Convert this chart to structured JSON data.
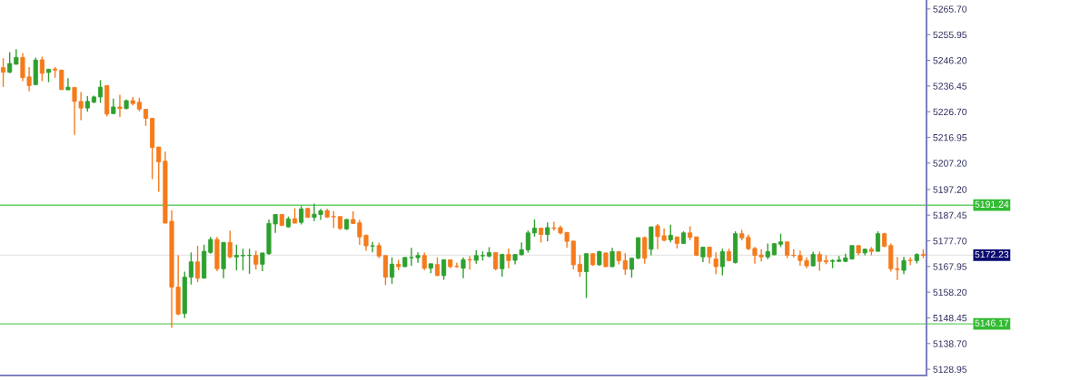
{
  "chart_data": {
    "type": "candlestick",
    "categories": [
      null,
      null,
      null,
      null,
      null,
      null,
      null,
      null,
      null,
      null,
      null,
      null,
      null,
      null,
      null,
      null,
      null,
      null,
      null,
      null,
      null,
      null,
      null,
      null,
      null,
      null,
      null,
      null,
      null,
      null,
      null,
      null,
      null,
      null,
      null,
      null,
      null,
      null,
      null,
      null,
      null,
      null,
      null,
      null,
      null,
      null,
      null,
      null,
      null,
      null,
      null,
      null,
      null,
      null,
      null,
      null,
      null,
      null,
      null,
      null,
      null,
      null,
      null,
      null,
      null,
      null,
      null,
      null,
      null,
      null,
      null,
      null,
      null,
      null,
      null,
      null,
      null,
      null,
      null,
      null,
      null,
      null,
      null,
      null,
      null,
      null,
      null,
      null,
      null,
      null,
      null,
      null,
      null,
      null,
      null,
      null,
      null,
      null,
      null,
      null,
      null,
      null,
      null,
      null,
      null,
      null,
      null,
      null,
      null,
      null,
      null,
      null,
      null,
      null,
      null,
      null,
      null,
      null,
      null,
      null,
      null,
      null,
      null,
      null,
      null,
      null,
      null,
      null,
      null,
      null,
      null,
      null,
      null,
      null,
      null,
      null,
      null,
      null,
      null,
      null,
      null,
      null,
      null
    ],
    "ohlc": [
      [
        5243.4,
        5247.0,
        5236.1,
        5241.7
      ],
      [
        5241.7,
        5249.3,
        5241.3,
        5245.0
      ],
      [
        5244.7,
        5250.4,
        5244.7,
        5247.3
      ],
      [
        5247.3,
        5249.0,
        5238.3,
        5239.6
      ],
      [
        5239.9,
        5243.6,
        5234.5,
        5236.6
      ],
      [
        5237.0,
        5247.2,
        5236.7,
        5246.3
      ],
      [
        5246.4,
        5247.6,
        5238.3,
        5241.3
      ],
      [
        5241.6,
        5243.0,
        5237.9,
        5242.8
      ],
      [
        5242.9,
        5243.7,
        5239.6,
        5242.5
      ],
      [
        5242.5,
        5242.5,
        5234.9,
        5235.1
      ],
      [
        5235.0,
        5239.4,
        5235.0,
        5236.0
      ],
      [
        5235.9,
        5235.9,
        5217.9,
        5230.6
      ],
      [
        5230.6,
        5234.2,
        5223.5,
        5228.1
      ],
      [
        5228.1,
        5232.6,
        5226.8,
        5230.6
      ],
      [
        5230.3,
        5232.8,
        5230.0,
        5232.3
      ],
      [
        5232.3,
        5238.7,
        5230.1,
        5236.0
      ],
      [
        5236.6,
        5236.8,
        5224.9,
        5225.8
      ],
      [
        5226.0,
        5231.7,
        5225.8,
        5228.5
      ],
      [
        5228.5,
        5233.1,
        5224.7,
        5227.9
      ],
      [
        5227.9,
        5231.3,
        5227.6,
        5230.9
      ],
      [
        5230.9,
        5232.3,
        5229.1,
        5229.8
      ],
      [
        5230.3,
        5232.0,
        5226.9,
        5227.7
      ],
      [
        5227.6,
        5227.6,
        5221.3,
        5224.2
      ],
      [
        5224.2,
        5224.2,
        5201.1,
        5213.1
      ],
      [
        5213.3,
        5213.3,
        5196.3,
        5207.7
      ],
      [
        5207.9,
        5211.5,
        5184.4,
        5184.4
      ],
      [
        5185.1,
        5189.2,
        5144.7,
        5160.1
      ],
      [
        5160.1,
        5172.2,
        5149.5,
        5149.9
      ],
      [
        5150.1,
        5166.0,
        5148.4,
        5163.9
      ],
      [
        5163.9,
        5173.3,
        5161.1,
        5169.7
      ],
      [
        5169.7,
        5175.8,
        5162.0,
        5163.5
      ],
      [
        5163.5,
        5176.2,
        5163.5,
        5173.7
      ],
      [
        5173.3,
        5179.2,
        5172.8,
        5178.2
      ],
      [
        5178.2,
        5179.2,
        5166.2,
        5167.1
      ],
      [
        5167.1,
        5177.1,
        5163.5,
        5177.1
      ],
      [
        5177.1,
        5181.6,
        5171.1,
        5171.6
      ],
      [
        5171.6,
        5176.2,
        5166.5,
        5172.2
      ],
      [
        5172.0,
        5174.7,
        5166.5,
        5172.2
      ],
      [
        5172.1,
        5174.7,
        5165.2,
        5172.2
      ],
      [
        5172.2,
        5173.9,
        5166.9,
        5168.8
      ],
      [
        5168.8,
        5173.1,
        5166.2,
        5173.1
      ],
      [
        5172.8,
        5185.8,
        5172.4,
        5184.3
      ],
      [
        5184.1,
        5187.7,
        5180.7,
        5187.7
      ],
      [
        5187.7,
        5187.7,
        5183.5,
        5183.5
      ],
      [
        5183.0,
        5186.9,
        5182.7,
        5186.0
      ],
      [
        5186.1,
        5190.1,
        5184.4,
        5184.4
      ],
      [
        5184.7,
        5190.9,
        5183.9,
        5189.8
      ],
      [
        5190.0,
        5190.3,
        5186.4,
        5186.6
      ],
      [
        5186.6,
        5191.8,
        5185.2,
        5187.8
      ],
      [
        5187.7,
        5189.8,
        5185.6,
        5189.1
      ],
      [
        5189.2,
        5189.8,
        5186.4,
        5186.7
      ],
      [
        5186.9,
        5189.0,
        5182.6,
        5186.8
      ],
      [
        5186.9,
        5186.9,
        5181.8,
        5182.4
      ],
      [
        5182.2,
        5186.0,
        5181.8,
        5185.8
      ],
      [
        5185.8,
        5188.9,
        5184.1,
        5184.3
      ],
      [
        5184.5,
        5185.7,
        5176.2,
        5179.2
      ],
      [
        5179.8,
        5180.1,
        5173.9,
        5175.8
      ],
      [
        5175.7,
        5177.3,
        5173.3,
        5175.8
      ],
      [
        5175.9,
        5177.0,
        5171.1,
        5171.9
      ],
      [
        5172.1,
        5172.1,
        5160.9,
        5163.9
      ],
      [
        5163.9,
        5171.4,
        5161.4,
        5168.8
      ],
      [
        5168.8,
        5170.5,
        5166.5,
        5167.9
      ],
      [
        5167.9,
        5171.4,
        5167.7,
        5171.4
      ],
      [
        5171.3,
        5175.0,
        5168.2,
        5171.4
      ],
      [
        5171.3,
        5173.3,
        5169.4,
        5172.1
      ],
      [
        5172.1,
        5173.2,
        5166.5,
        5167.3
      ],
      [
        5167.3,
        5169.0,
        5165.4,
        5169.0
      ],
      [
        5168.7,
        5171.4,
        5164.3,
        5164.5
      ],
      [
        5164.5,
        5170.7,
        5162.9,
        5170.5
      ],
      [
        5170.5,
        5170.5,
        5167.3,
        5167.9
      ],
      [
        5168.0,
        5169.4,
        5167.5,
        5167.9
      ],
      [
        5167.3,
        5171.4,
        5163.5,
        5170.5
      ],
      [
        5170.5,
        5171.9,
        5166.8,
        5170.4
      ],
      [
        5170.3,
        5174.1,
        5169.0,
        5172.1
      ],
      [
        5172.0,
        5173.7,
        5170.2,
        5172.1
      ],
      [
        5171.9,
        5175.3,
        5171.4,
        5173.2
      ],
      [
        5173.2,
        5173.2,
        5166.5,
        5167.1
      ],
      [
        5167.1,
        5172.8,
        5164.1,
        5172.5
      ],
      [
        5172.5,
        5174.8,
        5167.3,
        5170.2
      ],
      [
        5170.3,
        5172.5,
        5168.8,
        5172.5
      ],
      [
        5172.4,
        5177.1,
        5172.2,
        5174.3
      ],
      [
        5174.3,
        5181.6,
        5173.2,
        5180.7
      ],
      [
        5180.7,
        5185.8,
        5179.3,
        5182.5
      ],
      [
        5182.5,
        5182.5,
        5177.0,
        5180.1
      ],
      [
        5180.1,
        5184.7,
        5177.5,
        5182.7
      ],
      [
        5182.6,
        5184.9,
        5181.6,
        5182.4
      ],
      [
        5182.7,
        5183.5,
        5180.1,
        5180.7
      ],
      [
        5180.9,
        5180.9,
        5175.0,
        5177.5
      ],
      [
        5177.6,
        5177.6,
        5166.9,
        5168.6
      ],
      [
        5168.8,
        5172.2,
        5164.0,
        5166.0
      ],
      [
        5166.0,
        5173.0,
        5156.0,
        5172.8
      ],
      [
        5172.8,
        5173.0,
        5168.2,
        5168.6
      ],
      [
        5168.6,
        5173.9,
        5168.2,
        5173.6
      ],
      [
        5173.1,
        5173.1,
        5167.7,
        5167.9
      ],
      [
        5167.9,
        5175.0,
        5167.7,
        5173.6
      ],
      [
        5173.6,
        5173.6,
        5168.8,
        5170.2
      ],
      [
        5170.2,
        5173.0,
        5164.8,
        5166.9
      ],
      [
        5166.9,
        5171.1,
        5163.7,
        5171.1
      ],
      [
        5171.1,
        5178.9,
        5170.7,
        5178.9
      ],
      [
        5178.9,
        5179.3,
        5169.0,
        5171.1
      ],
      [
        5174.5,
        5183.0,
        5172.2,
        5183.0
      ],
      [
        5183.4,
        5184.1,
        5174.5,
        5179.3
      ],
      [
        5179.6,
        5182.4,
        5177.5,
        5177.9
      ],
      [
        5178.1,
        5183.8,
        5177.1,
        5179.8
      ],
      [
        5179.2,
        5179.2,
        5174.8,
        5176.7
      ],
      [
        5176.7,
        5181.3,
        5176.5,
        5180.7
      ],
      [
        5180.7,
        5183.2,
        5177.9,
        5179.0
      ],
      [
        5179.2,
        5179.2,
        5171.9,
        5172.2
      ],
      [
        5171.6,
        5175.3,
        5169.6,
        5175.3
      ],
      [
        5175.3,
        5175.3,
        5169.1,
        5171.6
      ],
      [
        5170.8,
        5173.3,
        5165.1,
        5167.9
      ],
      [
        5167.9,
        5174.7,
        5164.6,
        5173.6
      ],
      [
        5173.6,
        5174.7,
        5169.9,
        5170.2
      ],
      [
        5169.4,
        5181.3,
        5169.1,
        5180.4
      ],
      [
        5180.4,
        5181.8,
        5177.9,
        5178.8
      ],
      [
        5179.0,
        5180.1,
        5174.2,
        5174.7
      ],
      [
        5174.8,
        5175.4,
        5169.0,
        5172.2
      ],
      [
        5172.3,
        5174.5,
        5169.9,
        5171.6
      ],
      [
        5171.6,
        5176.7,
        5170.7,
        5173.6
      ],
      [
        5172.4,
        5176.9,
        5172.2,
        5176.6
      ],
      [
        5176.4,
        5180.4,
        5175.3,
        5177.3
      ],
      [
        5177.3,
        5177.3,
        5171.1,
        5172.2
      ],
      [
        5172.2,
        5174.5,
        5171.4,
        5172.1
      ],
      [
        5172.1,
        5173.9,
        5168.2,
        5170.2
      ],
      [
        5170.2,
        5171.4,
        5167.3,
        5168.2
      ],
      [
        5168.2,
        5173.6,
        5168.0,
        5172.5
      ],
      [
        5172.5,
        5173.6,
        5166.3,
        5169.9
      ],
      [
        5170.2,
        5172.2,
        5168.8,
        5169.7
      ],
      [
        5169.9,
        5170.7,
        5167.3,
        5170.2
      ],
      [
        5169.9,
        5171.9,
        5169.7,
        5170.4
      ],
      [
        5169.9,
        5172.8,
        5169.6,
        5171.2
      ],
      [
        5170.8,
        5175.9,
        5170.6,
        5175.9
      ],
      [
        5175.9,
        5175.9,
        5172.2,
        5173.1
      ],
      [
        5173.1,
        5174.8,
        5172.2,
        5174.5
      ],
      [
        5174.5,
        5175.3,
        5172.2,
        5173.7
      ],
      [
        5173.7,
        5181.3,
        5173.7,
        5180.4
      ],
      [
        5180.4,
        5180.7,
        5175.3,
        5175.6
      ],
      [
        5175.9,
        5176.7,
        5166.0,
        5167.1
      ],
      [
        5167.1,
        5171.6,
        5162.8,
        5166.8
      ],
      [
        5166.5,
        5171.6,
        5165.1,
        5170.2
      ],
      [
        5170.3,
        5171.4,
        5168.5,
        5170.2
      ],
      [
        5170.2,
        5173.0,
        5169.1,
        5172.5
      ],
      [
        5172.5,
        5174.5,
        5171.1,
        5172.2
      ]
    ],
    "colors": [
      "#f57b1c",
      "#2ea02e",
      "#2ea02e",
      "#f57b1c",
      "#f57b1c",
      "#2ea02e",
      "#f57b1c",
      "#2ea02e",
      "#f57b1c",
      "#f57b1c",
      "#2ea02e",
      "#f57b1c",
      "#f57b1c",
      "#2ea02e",
      "#2ea02e",
      "#2ea02e",
      "#f57b1c",
      "#2ea02e",
      "#f57b1c",
      "#2ea02e",
      "#f57b1c",
      "#f57b1c",
      "#f57b1c",
      "#f57b1c",
      "#f57b1c",
      "#f57b1c",
      "#f57b1c",
      "#f57b1c",
      "#2ea02e",
      "#2ea02e",
      "#f57b1c",
      "#2ea02e",
      "#2ea02e",
      "#f57b1c",
      "#2ea02e",
      "#f57b1c",
      "#2ea02e",
      "#2ea02e",
      "#2ea02e",
      "#f57b1c",
      "#2ea02e",
      "#2ea02e",
      "#2ea02e",
      "#f57b1c",
      "#2ea02e",
      "#f57b1c",
      "#2ea02e",
      "#f57b1c",
      "#2ea02e",
      "#2ea02e",
      "#f57b1c",
      "#f57b1c",
      "#f57b1c",
      "#2ea02e",
      "#f57b1c",
      "#f57b1c",
      "#f57b1c",
      "#2ea02e",
      "#f57b1c",
      "#f57b1c",
      "#2ea02e",
      "#f57b1c",
      "#2ea02e",
      "#2ea02e",
      "#2ea02e",
      "#f57b1c",
      "#2ea02e",
      "#f57b1c",
      "#2ea02e",
      "#f57b1c",
      "#f57b1c",
      "#2ea02e",
      "#f57b1c",
      "#2ea02e",
      "#2ea02e",
      "#2ea02e",
      "#f57b1c",
      "#2ea02e",
      "#f57b1c",
      "#2ea02e",
      "#2ea02e",
      "#2ea02e",
      "#2ea02e",
      "#f57b1c",
      "#2ea02e",
      "#f57b1c",
      "#f57b1c",
      "#f57b1c",
      "#f57b1c",
      "#f57b1c",
      "#2ea02e",
      "#f57b1c",
      "#2ea02e",
      "#f57b1c",
      "#2ea02e",
      "#f57b1c",
      "#f57b1c",
      "#2ea02e",
      "#2ea02e",
      "#f57b1c",
      "#2ea02e",
      "#f57b1c",
      "#f57b1c",
      "#2ea02e",
      "#f57b1c",
      "#2ea02e",
      "#f57b1c",
      "#f57b1c",
      "#2ea02e",
      "#f57b1c",
      "#f57b1c",
      "#2ea02e",
      "#f57b1c",
      "#2ea02e",
      "#f57b1c",
      "#f57b1c",
      "#f57b1c",
      "#f57b1c",
      "#2ea02e",
      "#2ea02e",
      "#2ea02e",
      "#f57b1c",
      "#f57b1c",
      "#f57b1c",
      "#f57b1c",
      "#2ea02e",
      "#f57b1c",
      "#f57b1c",
      "#2ea02e",
      "#2ea02e",
      "#2ea02e",
      "#2ea02e",
      "#f57b1c",
      "#2ea02e",
      "#f57b1c",
      "#2ea02e",
      "#f57b1c",
      "#f57b1c",
      "#f57b1c",
      "#2ea02e",
      "#f57b1c",
      "#2ea02e",
      "#f57b1c"
    ],
    "ylim": [
      5126.6,
      5269.1
    ],
    "yticks": [
      {
        "value": 5128.95,
        "label": "5128.95"
      },
      {
        "value": 5138.7,
        "label": "5138.70"
      },
      {
        "value": 5148.45,
        "label": "5148.45"
      },
      {
        "value": 5158.2,
        "label": "5158.20"
      },
      {
        "value": 5167.95,
        "label": "5167.95"
      },
      {
        "value": 5177.7,
        "label": "5177.70"
      },
      {
        "value": 5187.45,
        "label": "5187.45"
      },
      {
        "value": 5197.2,
        "label": "5197.20"
      },
      {
        "value": 5207.2,
        "label": "5207.20"
      },
      {
        "value": 5216.95,
        "label": "5216.95"
      },
      {
        "value": 5226.7,
        "label": "5226.70"
      },
      {
        "value": 5236.45,
        "label": "5236.45"
      },
      {
        "value": 5246.2,
        "label": "5246.20"
      },
      {
        "value": 5255.95,
        "label": "5255.95"
      },
      {
        "value": 5265.7,
        "label": "5265.70"
      }
    ],
    "ref_lines": [
      {
        "axis": "y",
        "value": 5191.24,
        "label": "5191.24",
        "color": "#66cc66"
      },
      {
        "axis": "y",
        "value": 5146.17,
        "label": "5146.17",
        "color": "#66cc66"
      },
      {
        "axis": "y",
        "value": 5172.23,
        "label": "5172.23",
        "color": "#e6e6e6"
      }
    ],
    "tick_labels": "y",
    "grid": false
  }
}
